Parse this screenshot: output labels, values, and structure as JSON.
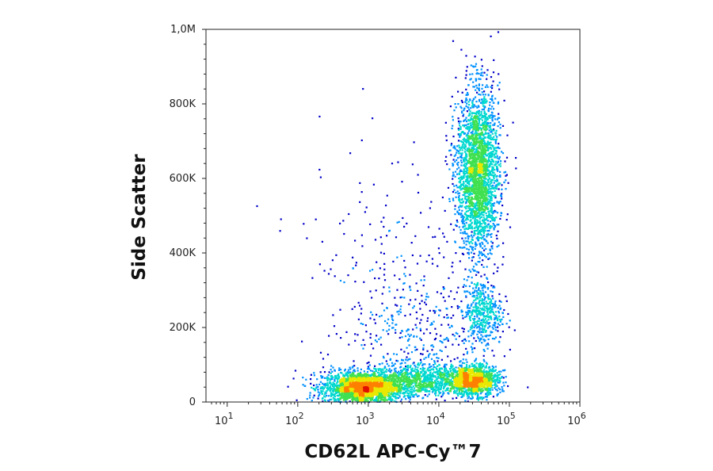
{
  "chart_data": {
    "type": "scatter",
    "xlabel": "CD62L APC-Cy™7",
    "ylabel": "Side Scatter",
    "x_scale": "log",
    "xlim": [
      5,
      1000000
    ],
    "ylim": [
      0,
      1000000
    ],
    "x_ticks": [
      {
        "value": 10,
        "base": "10",
        "exp": "1"
      },
      {
        "value": 100,
        "base": "10",
        "exp": "2"
      },
      {
        "value": 1000,
        "base": "10",
        "exp": "3"
      },
      {
        "value": 10000,
        "base": "10",
        "exp": "4"
      },
      {
        "value": 100000,
        "base": "10",
        "exp": "5"
      },
      {
        "value": 1000000,
        "base": "10",
        "exp": "6"
      }
    ],
    "y_ticks": [
      {
        "value": 0,
        "label": "0"
      },
      {
        "value": 200000,
        "label": "200K"
      },
      {
        "value": 400000,
        "label": "400K"
      },
      {
        "value": 600000,
        "label": "600K"
      },
      {
        "value": 800000,
        "label": "800K"
      },
      {
        "value": 1000000,
        "label": "1,0M"
      }
    ],
    "grid": false,
    "colormap": [
      "#0000c8",
      "#0090ff",
      "#00d8d0",
      "#40e050",
      "#e8e800",
      "#ff8000",
      "#e01000"
    ],
    "populations": [
      {
        "x": 800,
        "y": 40000,
        "x_spread_log10": 0.28,
        "y_spread": 22000,
        "count": 2200
      },
      {
        "x": 5000,
        "y": 60000,
        "x_spread_log10": 0.35,
        "y_spread": 22000,
        "count": 900
      },
      {
        "x": 30000,
        "y": 60000,
        "x_spread_log10": 0.18,
        "y_spread": 20000,
        "count": 1300
      },
      {
        "x": 35000,
        "y": 620000,
        "x_spread_log10": 0.15,
        "y_spread": 110000,
        "count": 2600
      },
      {
        "x": 40000,
        "y": 240000,
        "x_spread_log10": 0.14,
        "y_spread": 45000,
        "count": 450
      },
      {
        "x": 5000,
        "y": 200000,
        "x_spread_log10": 0.45,
        "y_spread": 90000,
        "count": 300
      },
      {
        "x": 1500,
        "y": 350000,
        "x_spread_log10": 0.6,
        "y_spread": 200000,
        "count": 180
      }
    ]
  }
}
